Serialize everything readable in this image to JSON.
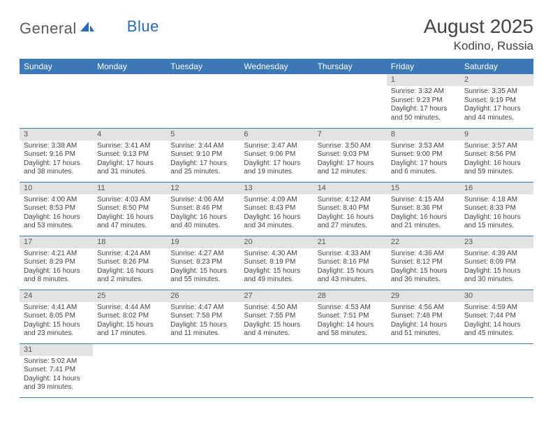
{
  "logo": {
    "general": "General",
    "blue": "Blue"
  },
  "title": "August 2025",
  "location": "Kodino, Russia",
  "colors": {
    "header_bg": "#3b78b5",
    "header_text": "#ffffff",
    "daynum_bg": "#e3e3e3",
    "cell_border": "#3b78b5",
    "logo_gray": "#5b5b5b",
    "logo_blue": "#2a6bb3"
  },
  "weekdays": [
    "Sunday",
    "Monday",
    "Tuesday",
    "Wednesday",
    "Thursday",
    "Friday",
    "Saturday"
  ],
  "weeks": [
    [
      {
        "n": "",
        "sr": "",
        "ss": "",
        "dl": ""
      },
      {
        "n": "",
        "sr": "",
        "ss": "",
        "dl": ""
      },
      {
        "n": "",
        "sr": "",
        "ss": "",
        "dl": ""
      },
      {
        "n": "",
        "sr": "",
        "ss": "",
        "dl": ""
      },
      {
        "n": "",
        "sr": "",
        "ss": "",
        "dl": ""
      },
      {
        "n": "1",
        "sr": "Sunrise: 3:32 AM",
        "ss": "Sunset: 9:23 PM",
        "dl": "Daylight: 17 hours and 50 minutes."
      },
      {
        "n": "2",
        "sr": "Sunrise: 3:35 AM",
        "ss": "Sunset: 9:19 PM",
        "dl": "Daylight: 17 hours and 44 minutes."
      }
    ],
    [
      {
        "n": "3",
        "sr": "Sunrise: 3:38 AM",
        "ss": "Sunset: 9:16 PM",
        "dl": "Daylight: 17 hours and 38 minutes."
      },
      {
        "n": "4",
        "sr": "Sunrise: 3:41 AM",
        "ss": "Sunset: 9:13 PM",
        "dl": "Daylight: 17 hours and 31 minutes."
      },
      {
        "n": "5",
        "sr": "Sunrise: 3:44 AM",
        "ss": "Sunset: 9:10 PM",
        "dl": "Daylight: 17 hours and 25 minutes."
      },
      {
        "n": "6",
        "sr": "Sunrise: 3:47 AM",
        "ss": "Sunset: 9:06 PM",
        "dl": "Daylight: 17 hours and 19 minutes."
      },
      {
        "n": "7",
        "sr": "Sunrise: 3:50 AM",
        "ss": "Sunset: 9:03 PM",
        "dl": "Daylight: 17 hours and 12 minutes."
      },
      {
        "n": "8",
        "sr": "Sunrise: 3:53 AM",
        "ss": "Sunset: 9:00 PM",
        "dl": "Daylight: 17 hours and 6 minutes."
      },
      {
        "n": "9",
        "sr": "Sunrise: 3:57 AM",
        "ss": "Sunset: 8:56 PM",
        "dl": "Daylight: 16 hours and 59 minutes."
      }
    ],
    [
      {
        "n": "10",
        "sr": "Sunrise: 4:00 AM",
        "ss": "Sunset: 8:53 PM",
        "dl": "Daylight: 16 hours and 53 minutes."
      },
      {
        "n": "11",
        "sr": "Sunrise: 4:03 AM",
        "ss": "Sunset: 8:50 PM",
        "dl": "Daylight: 16 hours and 47 minutes."
      },
      {
        "n": "12",
        "sr": "Sunrise: 4:06 AM",
        "ss": "Sunset: 8:46 PM",
        "dl": "Daylight: 16 hours and 40 minutes."
      },
      {
        "n": "13",
        "sr": "Sunrise: 4:09 AM",
        "ss": "Sunset: 8:43 PM",
        "dl": "Daylight: 16 hours and 34 minutes."
      },
      {
        "n": "14",
        "sr": "Sunrise: 4:12 AM",
        "ss": "Sunset: 8:40 PM",
        "dl": "Daylight: 16 hours and 27 minutes."
      },
      {
        "n": "15",
        "sr": "Sunrise: 4:15 AM",
        "ss": "Sunset: 8:36 PM",
        "dl": "Daylight: 16 hours and 21 minutes."
      },
      {
        "n": "16",
        "sr": "Sunrise: 4:18 AM",
        "ss": "Sunset: 8:33 PM",
        "dl": "Daylight: 16 hours and 15 minutes."
      }
    ],
    [
      {
        "n": "17",
        "sr": "Sunrise: 4:21 AM",
        "ss": "Sunset: 8:29 PM",
        "dl": "Daylight: 16 hours and 8 minutes."
      },
      {
        "n": "18",
        "sr": "Sunrise: 4:24 AM",
        "ss": "Sunset: 8:26 PM",
        "dl": "Daylight: 16 hours and 2 minutes."
      },
      {
        "n": "19",
        "sr": "Sunrise: 4:27 AM",
        "ss": "Sunset: 8:23 PM",
        "dl": "Daylight: 15 hours and 55 minutes."
      },
      {
        "n": "20",
        "sr": "Sunrise: 4:30 AM",
        "ss": "Sunset: 8:19 PM",
        "dl": "Daylight: 15 hours and 49 minutes."
      },
      {
        "n": "21",
        "sr": "Sunrise: 4:33 AM",
        "ss": "Sunset: 8:16 PM",
        "dl": "Daylight: 15 hours and 43 minutes."
      },
      {
        "n": "22",
        "sr": "Sunrise: 4:36 AM",
        "ss": "Sunset: 8:12 PM",
        "dl": "Daylight: 15 hours and 36 minutes."
      },
      {
        "n": "23",
        "sr": "Sunrise: 4:39 AM",
        "ss": "Sunset: 8:09 PM",
        "dl": "Daylight: 15 hours and 30 minutes."
      }
    ],
    [
      {
        "n": "24",
        "sr": "Sunrise: 4:41 AM",
        "ss": "Sunset: 8:05 PM",
        "dl": "Daylight: 15 hours and 23 minutes."
      },
      {
        "n": "25",
        "sr": "Sunrise: 4:44 AM",
        "ss": "Sunset: 8:02 PM",
        "dl": "Daylight: 15 hours and 17 minutes."
      },
      {
        "n": "26",
        "sr": "Sunrise: 4:47 AM",
        "ss": "Sunset: 7:58 PM",
        "dl": "Daylight: 15 hours and 11 minutes."
      },
      {
        "n": "27",
        "sr": "Sunrise: 4:50 AM",
        "ss": "Sunset: 7:55 PM",
        "dl": "Daylight: 15 hours and 4 minutes."
      },
      {
        "n": "28",
        "sr": "Sunrise: 4:53 AM",
        "ss": "Sunset: 7:51 PM",
        "dl": "Daylight: 14 hours and 58 minutes."
      },
      {
        "n": "29",
        "sr": "Sunrise: 4:56 AM",
        "ss": "Sunset: 7:48 PM",
        "dl": "Daylight: 14 hours and 51 minutes."
      },
      {
        "n": "30",
        "sr": "Sunrise: 4:59 AM",
        "ss": "Sunset: 7:44 PM",
        "dl": "Daylight: 14 hours and 45 minutes."
      }
    ],
    [
      {
        "n": "31",
        "sr": "Sunrise: 5:02 AM",
        "ss": "Sunset: 7:41 PM",
        "dl": "Daylight: 14 hours and 39 minutes."
      },
      {
        "n": "",
        "sr": "",
        "ss": "",
        "dl": "",
        "blank": true
      },
      {
        "n": "",
        "sr": "",
        "ss": "",
        "dl": "",
        "blank": true
      },
      {
        "n": "",
        "sr": "",
        "ss": "",
        "dl": "",
        "blank": true
      },
      {
        "n": "",
        "sr": "",
        "ss": "",
        "dl": "",
        "blank": true
      },
      {
        "n": "",
        "sr": "",
        "ss": "",
        "dl": "",
        "blank": true
      },
      {
        "n": "",
        "sr": "",
        "ss": "",
        "dl": "",
        "blank": true
      }
    ]
  ]
}
